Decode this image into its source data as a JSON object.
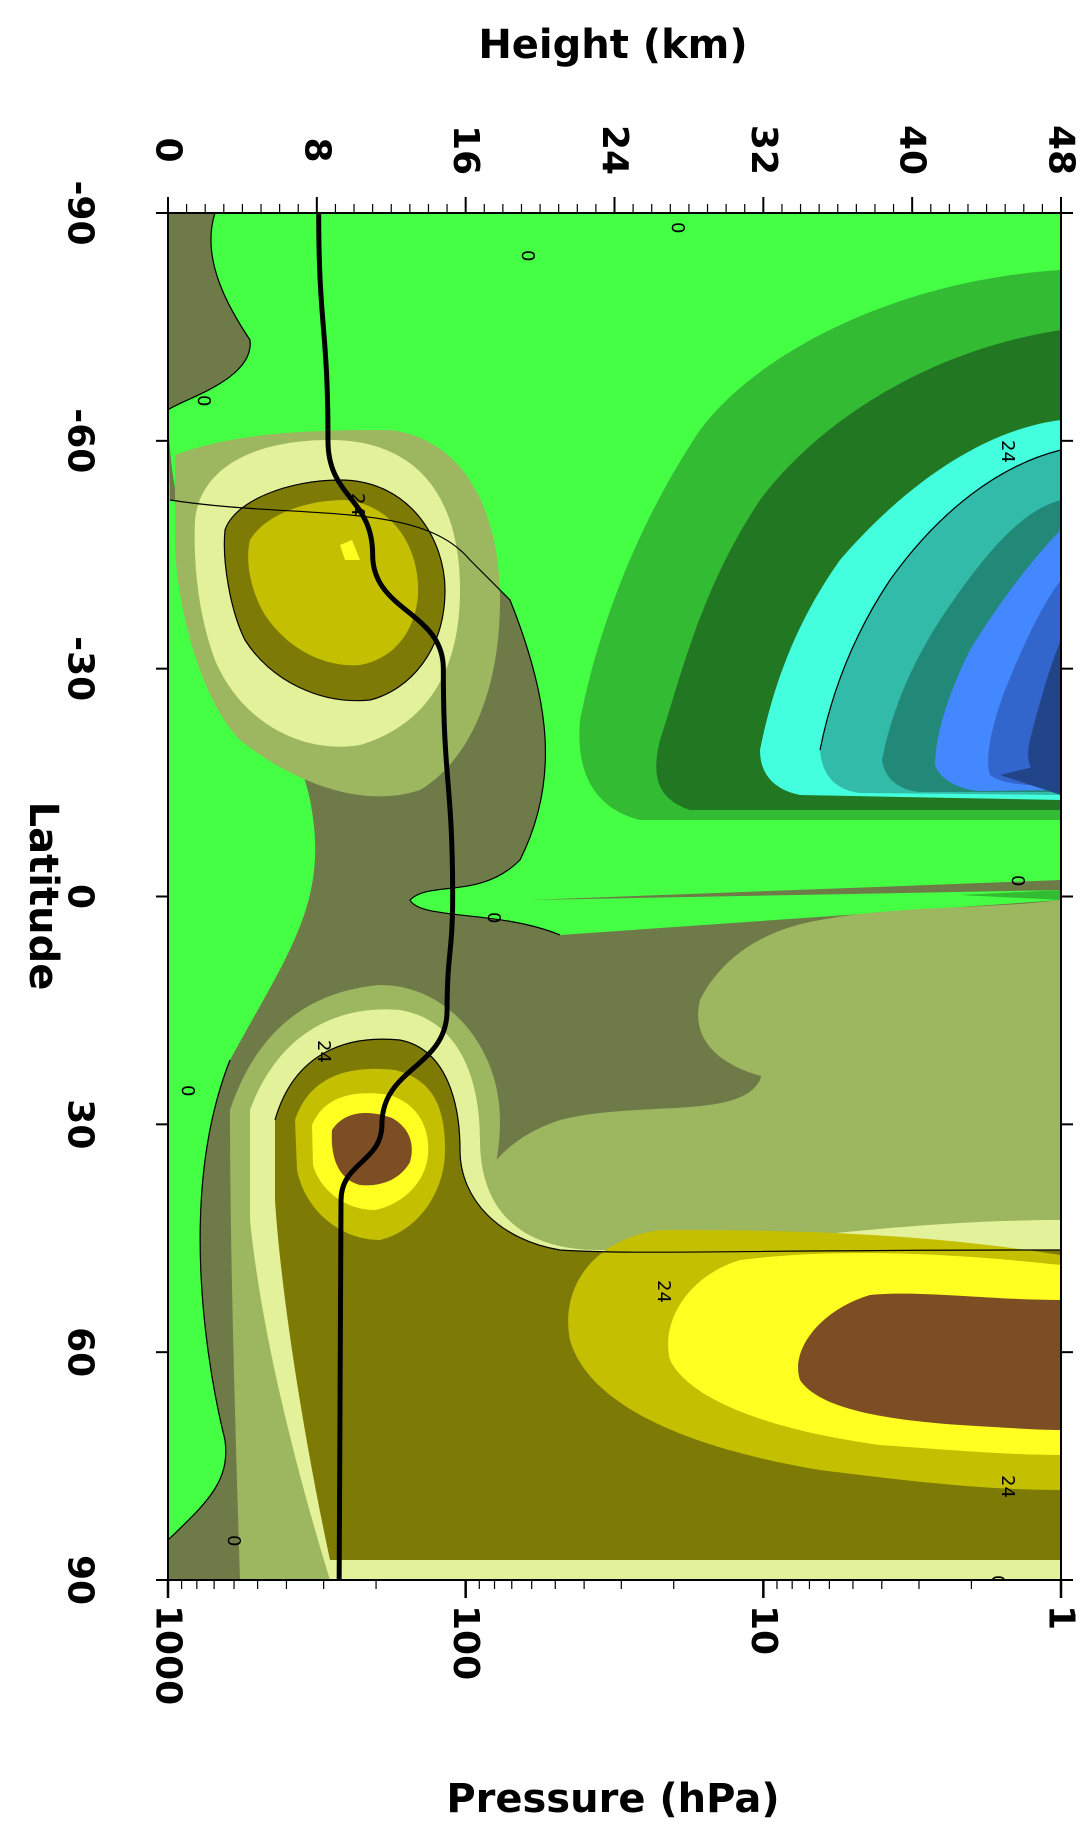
{
  "chart_data": {
    "type": "contour",
    "xlabel": "Latitude",
    "ylabel_left": "Height (km)",
    "ylabel_right": "Pressure (hPa)",
    "x_ticks": [
      "-90",
      "-60",
      "-30",
      "0",
      "30",
      "60",
      "90"
    ],
    "x_range": [
      -90,
      90
    ],
    "height_ticks": [
      "0",
      "8",
      "16",
      "24",
      "32",
      "40",
      "48"
    ],
    "height_range_km": [
      0,
      48
    ],
    "pressure_ticks": [
      "1000",
      "100",
      "10",
      "1"
    ],
    "pressure_range_hPa": [
      1000,
      1
    ],
    "contour_labels": [
      "0",
      "24"
    ],
    "colors": {
      "neg_light_green": "#44ff44",
      "neg_green": "#33bb33",
      "neg_dark_green": "#227722",
      "neg_cyan": "#44ffdd",
      "neg_teal": "#33bbaa",
      "neg_dark_teal": "#228877",
      "neg_blue": "#4488ff",
      "neg_mid_blue": "#3366cc",
      "neg_navy": "#224488",
      "pos_olive_gray": "#6e7a48",
      "pos_pale_olive": "#9db660",
      "pos_light_yellow": "#e3f29a",
      "pos_olive": "#7d7b05",
      "pos_mustard": "#c4bf00",
      "pos_yellow": "#ffff22",
      "pos_brown": "#7d4e24",
      "tropopause_line": "#000000"
    },
    "tropopause_km": [
      {
        "lat": -90,
        "km": 8.1
      },
      {
        "lat": -60,
        "km": 8.6
      },
      {
        "lat": -45,
        "km": 11.0
      },
      {
        "lat": -30,
        "km": 14.8
      },
      {
        "lat": 0,
        "km": 15.3
      },
      {
        "lat": 15,
        "km": 15.0
      },
      {
        "lat": 30,
        "km": 11.5
      },
      {
        "lat": 40,
        "km": 9.3
      },
      {
        "lat": 90,
        "km": 9.2
      }
    ]
  }
}
